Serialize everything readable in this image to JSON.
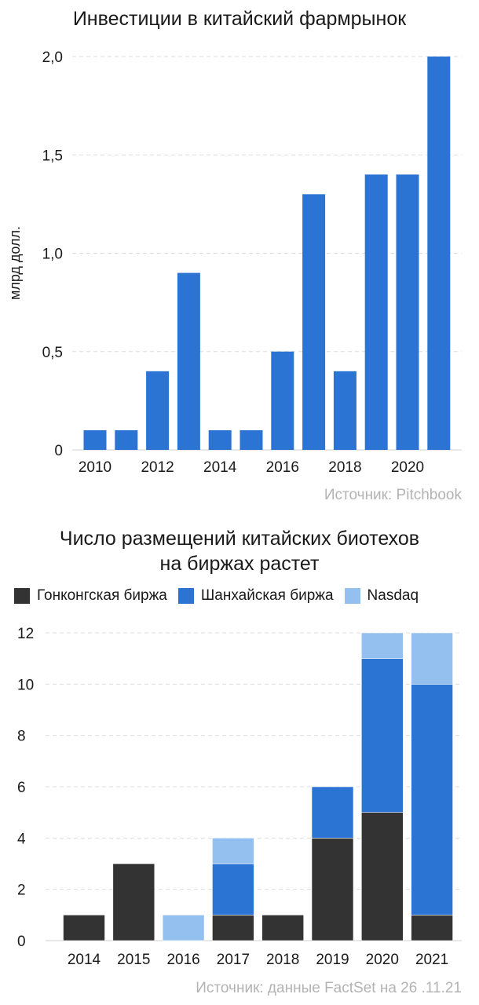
{
  "chart_data": [
    {
      "type": "bar",
      "title": "Инвестиции в китайский фармрынок",
      "ylabel": "млрд долл.",
      "xlabel": "",
      "ylim": [
        0,
        2.0
      ],
      "y_ticks": [
        "0",
        "0,5",
        "1,0",
        "1,5",
        "2,0"
      ],
      "x_tick_labels": [
        "2010",
        "2012",
        "2014",
        "2016",
        "2018",
        "2020"
      ],
      "categories": [
        "2010",
        "2011",
        "2012",
        "2013",
        "2014",
        "2015",
        "2016",
        "2017",
        "2018",
        "2019",
        "2020",
        "2021"
      ],
      "values": [
        0.1,
        0.1,
        0.4,
        0.9,
        0.1,
        0.1,
        0.5,
        1.3,
        0.4,
        1.4,
        1.4,
        2.0
      ],
      "color": "#2b74d4",
      "grid": true,
      "source": "Источник: Pitchbook"
    },
    {
      "type": "bar",
      "stacked": true,
      "title_lines": [
        "Число размещений китайских биотехов",
        "на биржах растет"
      ],
      "xlabel": "",
      "ylabel": "",
      "ylim": [
        0,
        12
      ],
      "y_ticks": [
        "0",
        "2",
        "4",
        "6",
        "8",
        "10",
        "12"
      ],
      "categories": [
        "2014",
        "2015",
        "2016",
        "2017",
        "2018",
        "2019",
        "2020",
        "2021"
      ],
      "series": [
        {
          "name": "Гонконгская биржа",
          "color": "#333333",
          "values": [
            1,
            3,
            0,
            1,
            1,
            4,
            5,
            1
          ]
        },
        {
          "name": "Шанхайская биржа",
          "color": "#2b74d4",
          "values": [
            0,
            0,
            0,
            2,
            0,
            2,
            6,
            9
          ]
        },
        {
          "name": "Nasdaq",
          "color": "#93c0ee",
          "values": [
            0,
            0,
            1,
            1,
            0,
            0,
            1,
            2
          ]
        }
      ],
      "legend_position": "top-left",
      "grid": true,
      "source": "Источник: данные FactSet на 26 .11.21"
    }
  ]
}
